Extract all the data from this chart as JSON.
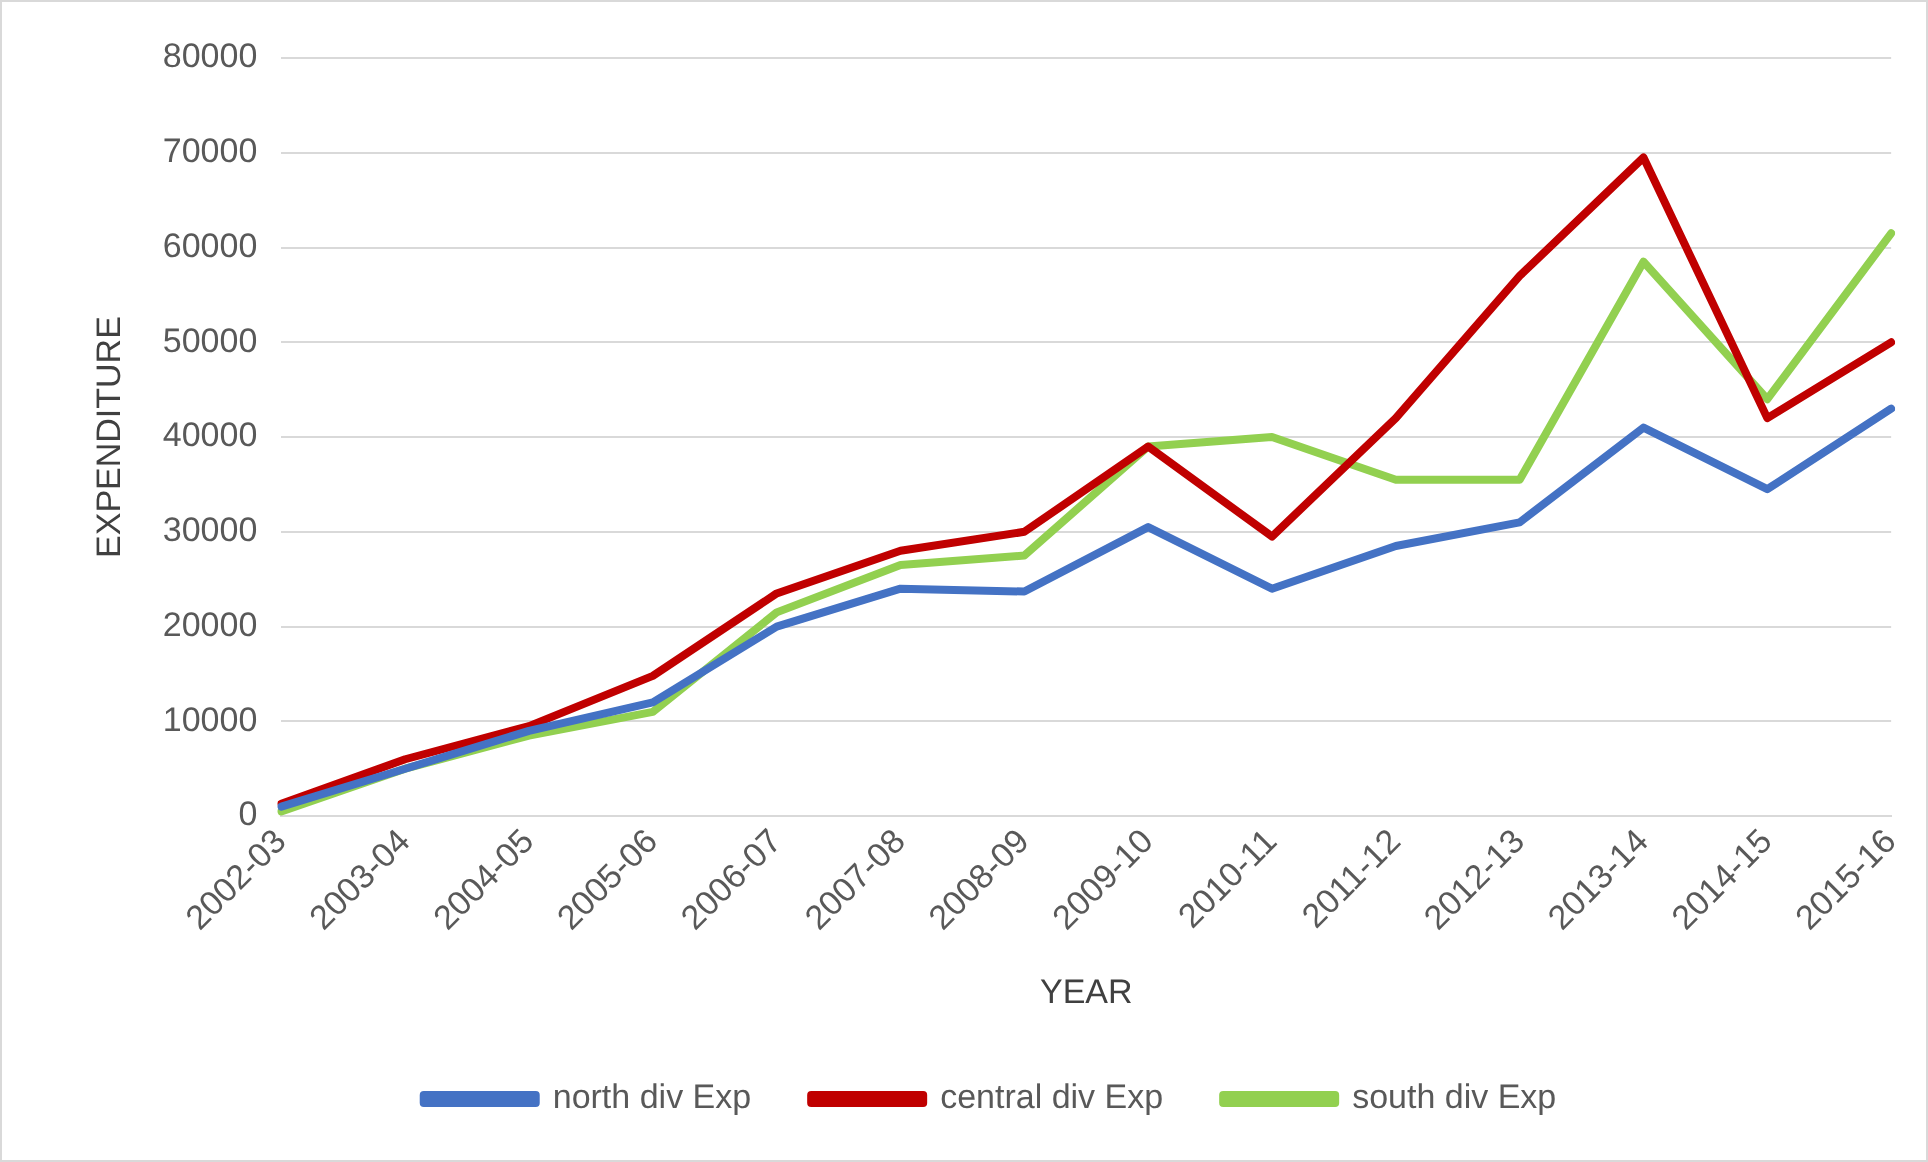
{
  "chart_data": {
    "type": "line",
    "xlabel": "YEAR",
    "ylabel": "EXPENDITURE",
    "categories": [
      "2002-03",
      "2003-04",
      "2004-05",
      "2005-06",
      "2006-07",
      "2007-08",
      "2008-09",
      "2009-10",
      "2010-11",
      "2011-12",
      "2012-13",
      "2013-14",
      "2014-15",
      "2015-16"
    ],
    "series": [
      {
        "name": "north div Exp",
        "color": "#4472c4",
        "values": [
          1000,
          5000,
          9000,
          12000,
          20000,
          24000,
          23700,
          30500,
          24000,
          28500,
          31000,
          41000,
          34500,
          43000
        ]
      },
      {
        "name": "central div Exp",
        "color": "#c00000",
        "values": [
          1300,
          6000,
          9500,
          14800,
          23500,
          28000,
          30000,
          39000,
          29500,
          42000,
          57000,
          69500,
          42000,
          50000
        ]
      },
      {
        "name": "south div Exp",
        "color": "#92d050",
        "values": [
          500,
          5000,
          8500,
          11000,
          21500,
          26500,
          27500,
          39000,
          40000,
          35500,
          35500,
          58500,
          44000,
          61500
        ]
      }
    ],
    "ylim": [
      0,
      80000
    ],
    "yticks": [
      0,
      10000,
      20000,
      30000,
      40000,
      50000,
      60000,
      70000,
      80000
    ],
    "grid": "y",
    "legend": "bottom",
    "marker": "none",
    "line_style": "solid"
  }
}
